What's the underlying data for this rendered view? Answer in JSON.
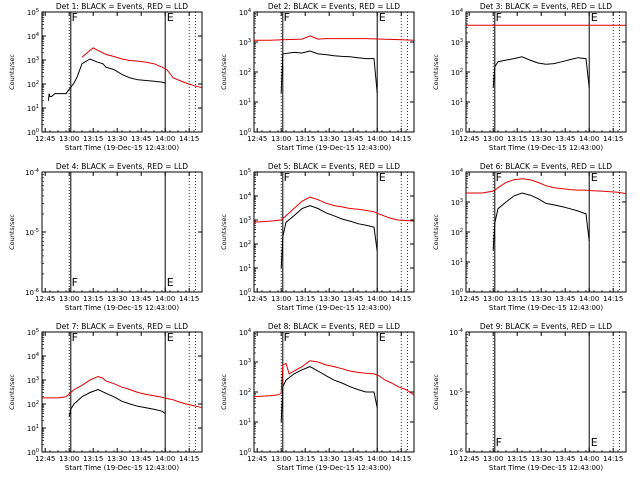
{
  "figure": {
    "colors": {
      "events": "#000000",
      "lld": "#e00000",
      "axes": "#000000",
      "background": "#ffffff"
    },
    "common_xlabel": "Start Time (19-Dec-15 12:43:00)",
    "x_ticks": [
      {
        "t": 2,
        "label": "12:45"
      },
      {
        "t": 17,
        "label": "13:00"
      },
      {
        "t": 32,
        "label": "13:15"
      },
      {
        "t": 47,
        "label": "13:30"
      },
      {
        "t": 62,
        "label": "13:45"
      },
      {
        "t": 77,
        "label": "14:00"
      },
      {
        "t": 92,
        "label": "14:15"
      }
    ],
    "x_range_minutes": [
      0,
      100
    ],
    "ylabel": "Counts/sec",
    "vertical_lines": {
      "solid": [
        18,
        77
      ],
      "dotted": [
        17,
        92,
        96
      ],
      "markers": [
        {
          "t": 18.5,
          "label": "F"
        },
        {
          "t": 78,
          "label": "E"
        }
      ]
    }
  },
  "chart_data": [
    {
      "type": "line",
      "title": "Det 1: BLACK = Events, RED = LLD",
      "xlabel": "Start Time (19-Dec-15 12:43:00)",
      "ylabel": "Counts/sec",
      "ylog": true,
      "ylim": [
        1,
        100000
      ],
      "series": [
        {
          "name": "Events",
          "color": "#000000",
          "x": [
            1,
            1.5,
            2,
            3,
            4,
            4.5,
            5,
            6,
            8,
            10,
            15,
            20,
            22,
            25,
            30,
            35,
            38,
            40,
            45,
            50,
            55,
            60,
            65,
            70,
            75,
            77
          ],
          "y": [
            null,
            null,
            null,
            null,
            20,
            40,
            30,
            30,
            40,
            40,
            40,
            110,
            200,
            700,
            1100,
            800,
            700,
            500,
            400,
            250,
            180,
            150,
            140,
            130,
            120,
            110
          ]
        },
        {
          "name": "LLD",
          "color": "#e00000",
          "x": [
            0,
            10,
            15,
            18,
            20,
            25,
            30,
            32,
            35,
            38,
            40,
            45,
            50,
            55,
            60,
            65,
            70,
            75,
            78,
            82,
            86,
            90,
            95,
            100
          ],
          "y": [
            null,
            null,
            null,
            null,
            null,
            1300,
            2500,
            3200,
            2500,
            2000,
            1700,
            1400,
            1100,
            950,
            900,
            800,
            700,
            500,
            400,
            180,
            140,
            110,
            85,
            70
          ]
        }
      ]
    },
    {
      "type": "line",
      "title": "Det 2: BLACK = Events, RED = LLD",
      "xlabel": "Start Time (19-Dec-15 12:43:00)",
      "ylabel": "Counts/sec",
      "ylog": true,
      "ylim": [
        1,
        10000
      ],
      "series": [
        {
          "name": "Events",
          "color": "#000000",
          "x": [
            17,
            18,
            25,
            30,
            35,
            40,
            45,
            50,
            55,
            60,
            65,
            70,
            75,
            77
          ],
          "y": [
            20,
            400,
            450,
            430,
            500,
            400,
            380,
            350,
            330,
            320,
            300,
            280,
            280,
            20
          ]
        },
        {
          "name": "LLD",
          "color": "#e00000",
          "x": [
            0,
            10,
            20,
            30,
            35,
            40,
            45,
            50,
            60,
            70,
            80,
            90,
            100
          ],
          "y": [
            1150,
            1150,
            1200,
            1250,
            1600,
            1250,
            1300,
            1300,
            1300,
            1300,
            1250,
            1200,
            1150
          ]
        }
      ]
    },
    {
      "type": "line",
      "title": "Det 3: BLACK = Events, RED = LLD",
      "xlabel": "Start Time (19-Dec-15 12:43:00)",
      "ylabel": "Counts/sec",
      "ylog": true,
      "ylim": [
        1,
        10000
      ],
      "series": [
        {
          "name": "Events",
          "color": "#000000",
          "x": [
            17,
            18,
            20,
            25,
            30,
            35,
            40,
            45,
            50,
            55,
            60,
            65,
            70,
            75,
            77
          ],
          "y": [
            30,
            150,
            220,
            250,
            280,
            320,
            250,
            200,
            180,
            190,
            220,
            260,
            300,
            280,
            30
          ]
        },
        {
          "name": "LLD",
          "color": "#e00000",
          "x": [
            0,
            20,
            40,
            60,
            80,
            100
          ],
          "y": [
            3600,
            3600,
            3600,
            3600,
            3600,
            3600
          ]
        }
      ]
    },
    {
      "type": "line",
      "title": "Det 4: BLACK = Events, RED = LLD",
      "xlabel": "Start Time (19-Dec-15 12:43:00)",
      "ylabel": "Counts/sec",
      "ylog": true,
      "ylim": [
        1e-06,
        0.0001
      ],
      "series": []
    },
    {
      "type": "line",
      "title": "Det 5: BLACK = Events, RED = LLD",
      "xlabel": "Start Time (19-Dec-15 12:43:00)",
      "ylabel": "Counts/sec",
      "ylog": true,
      "ylim": [
        1,
        100000
      ],
      "series": [
        {
          "name": "Events",
          "color": "#000000",
          "x": [
            17,
            18,
            20,
            25,
            30,
            35,
            40,
            45,
            50,
            55,
            60,
            65,
            70,
            75,
            77
          ],
          "y": [
            10,
            200,
            800,
            1500,
            3000,
            4000,
            3000,
            2000,
            1500,
            1100,
            900,
            700,
            600,
            500,
            50
          ]
        },
        {
          "name": "LLD",
          "color": "#e00000",
          "x": [
            0,
            10,
            17,
            20,
            25,
            30,
            35,
            40,
            45,
            50,
            55,
            60,
            65,
            70,
            75,
            78,
            85,
            90,
            95,
            100
          ],
          "y": [
            800,
            900,
            1000,
            1500,
            3000,
            6000,
            9000,
            7000,
            5000,
            4000,
            3500,
            3000,
            2800,
            2500,
            2200,
            1800,
            1200,
            1000,
            950,
            900
          ]
        }
      ]
    },
    {
      "type": "line",
      "title": "Det 6: BLACK = Events, RED = LLD",
      "xlabel": "Start Time (19-Dec-15 12:43:00)",
      "ylabel": "Counts/sec",
      "ylog": true,
      "ylim": [
        1,
        10000
      ],
      "series": [
        {
          "name": "Events",
          "color": "#000000",
          "x": [
            17,
            18,
            20,
            25,
            30,
            35,
            40,
            45,
            50,
            55,
            60,
            65,
            70,
            75,
            77
          ],
          "y": [
            25,
            200,
            600,
            1000,
            1600,
            2000,
            1700,
            1300,
            900,
            800,
            700,
            600,
            500,
            400,
            50
          ]
        },
        {
          "name": "LLD",
          "color": "#e00000",
          "x": [
            0,
            10,
            17,
            20,
            25,
            30,
            35,
            40,
            45,
            50,
            55,
            60,
            65,
            70,
            75,
            78,
            85,
            90,
            95,
            100
          ],
          "y": [
            2000,
            2000,
            2300,
            3000,
            4500,
            5500,
            6000,
            5500,
            4500,
            3500,
            3000,
            2800,
            2600,
            2500,
            2500,
            2400,
            2300,
            2200,
            2100,
            1900
          ]
        }
      ]
    },
    {
      "type": "line",
      "title": "Det 7: BLACK = Events, RED = LLD",
      "xlabel": "Start Time (19-Dec-15 12:43:00)",
      "ylabel": "Counts/sec",
      "ylog": true,
      "ylim": [
        1,
        100000
      ],
      "series": [
        {
          "name": "Events",
          "color": "#000000",
          "x": [
            4,
            4.5,
            17,
            18,
            20,
            25,
            30,
            35,
            40,
            45,
            50,
            55,
            60,
            65,
            70,
            75,
            77
          ],
          "y": [
            null,
            null,
            30,
            60,
            100,
            200,
            300,
            400,
            280,
            200,
            130,
            100,
            80,
            70,
            60,
            50,
            40
          ]
        },
        {
          "name": "LLD",
          "color": "#e00000",
          "x": [
            0,
            10,
            15,
            18,
            20,
            25,
            30,
            35,
            38,
            40,
            45,
            50,
            55,
            60,
            65,
            70,
            75,
            78,
            82,
            86,
            90,
            95,
            100
          ],
          "y": [
            180,
            180,
            200,
            300,
            400,
            600,
            1000,
            1400,
            1200,
            900,
            700,
            500,
            400,
            300,
            250,
            220,
            190,
            170,
            150,
            120,
            100,
            85,
            70
          ]
        }
      ]
    },
    {
      "type": "line",
      "title": "Det 8: BLACK = Events, RED = LLD",
      "xlabel": "Start Time (19-Dec-15 12:43:00)",
      "ylabel": "Counts/sec",
      "ylog": true,
      "ylim": [
        1,
        10000
      ],
      "series": [
        {
          "name": "Events",
          "color": "#000000",
          "x": [
            17,
            18,
            20,
            25,
            30,
            35,
            40,
            45,
            50,
            55,
            60,
            65,
            70,
            75,
            77
          ],
          "y": [
            10,
            150,
            250,
            400,
            550,
            700,
            500,
            350,
            250,
            200,
            150,
            120,
            100,
            100,
            30
          ]
        },
        {
          "name": "LLD",
          "color": "#e00000",
          "x": [
            0,
            10,
            15,
            17,
            18,
            20,
            22,
            25,
            30,
            35,
            40,
            45,
            50,
            55,
            60,
            65,
            70,
            75,
            78,
            82,
            86,
            90,
            95,
            100
          ],
          "y": [
            70,
            75,
            80,
            90,
            800,
            900,
            400,
            500,
            700,
            1100,
            1000,
            800,
            700,
            600,
            500,
            450,
            420,
            400,
            350,
            250,
            200,
            150,
            120,
            80
          ]
        }
      ]
    },
    {
      "type": "line",
      "title": "Det 9: BLACK = Events, RED = LLD",
      "xlabel": "Start Time (19-Dec-15 12:43:00)",
      "ylabel": "Counts/sec",
      "ylog": true,
      "ylim": [
        1e-06,
        0.0001
      ],
      "series": []
    }
  ]
}
